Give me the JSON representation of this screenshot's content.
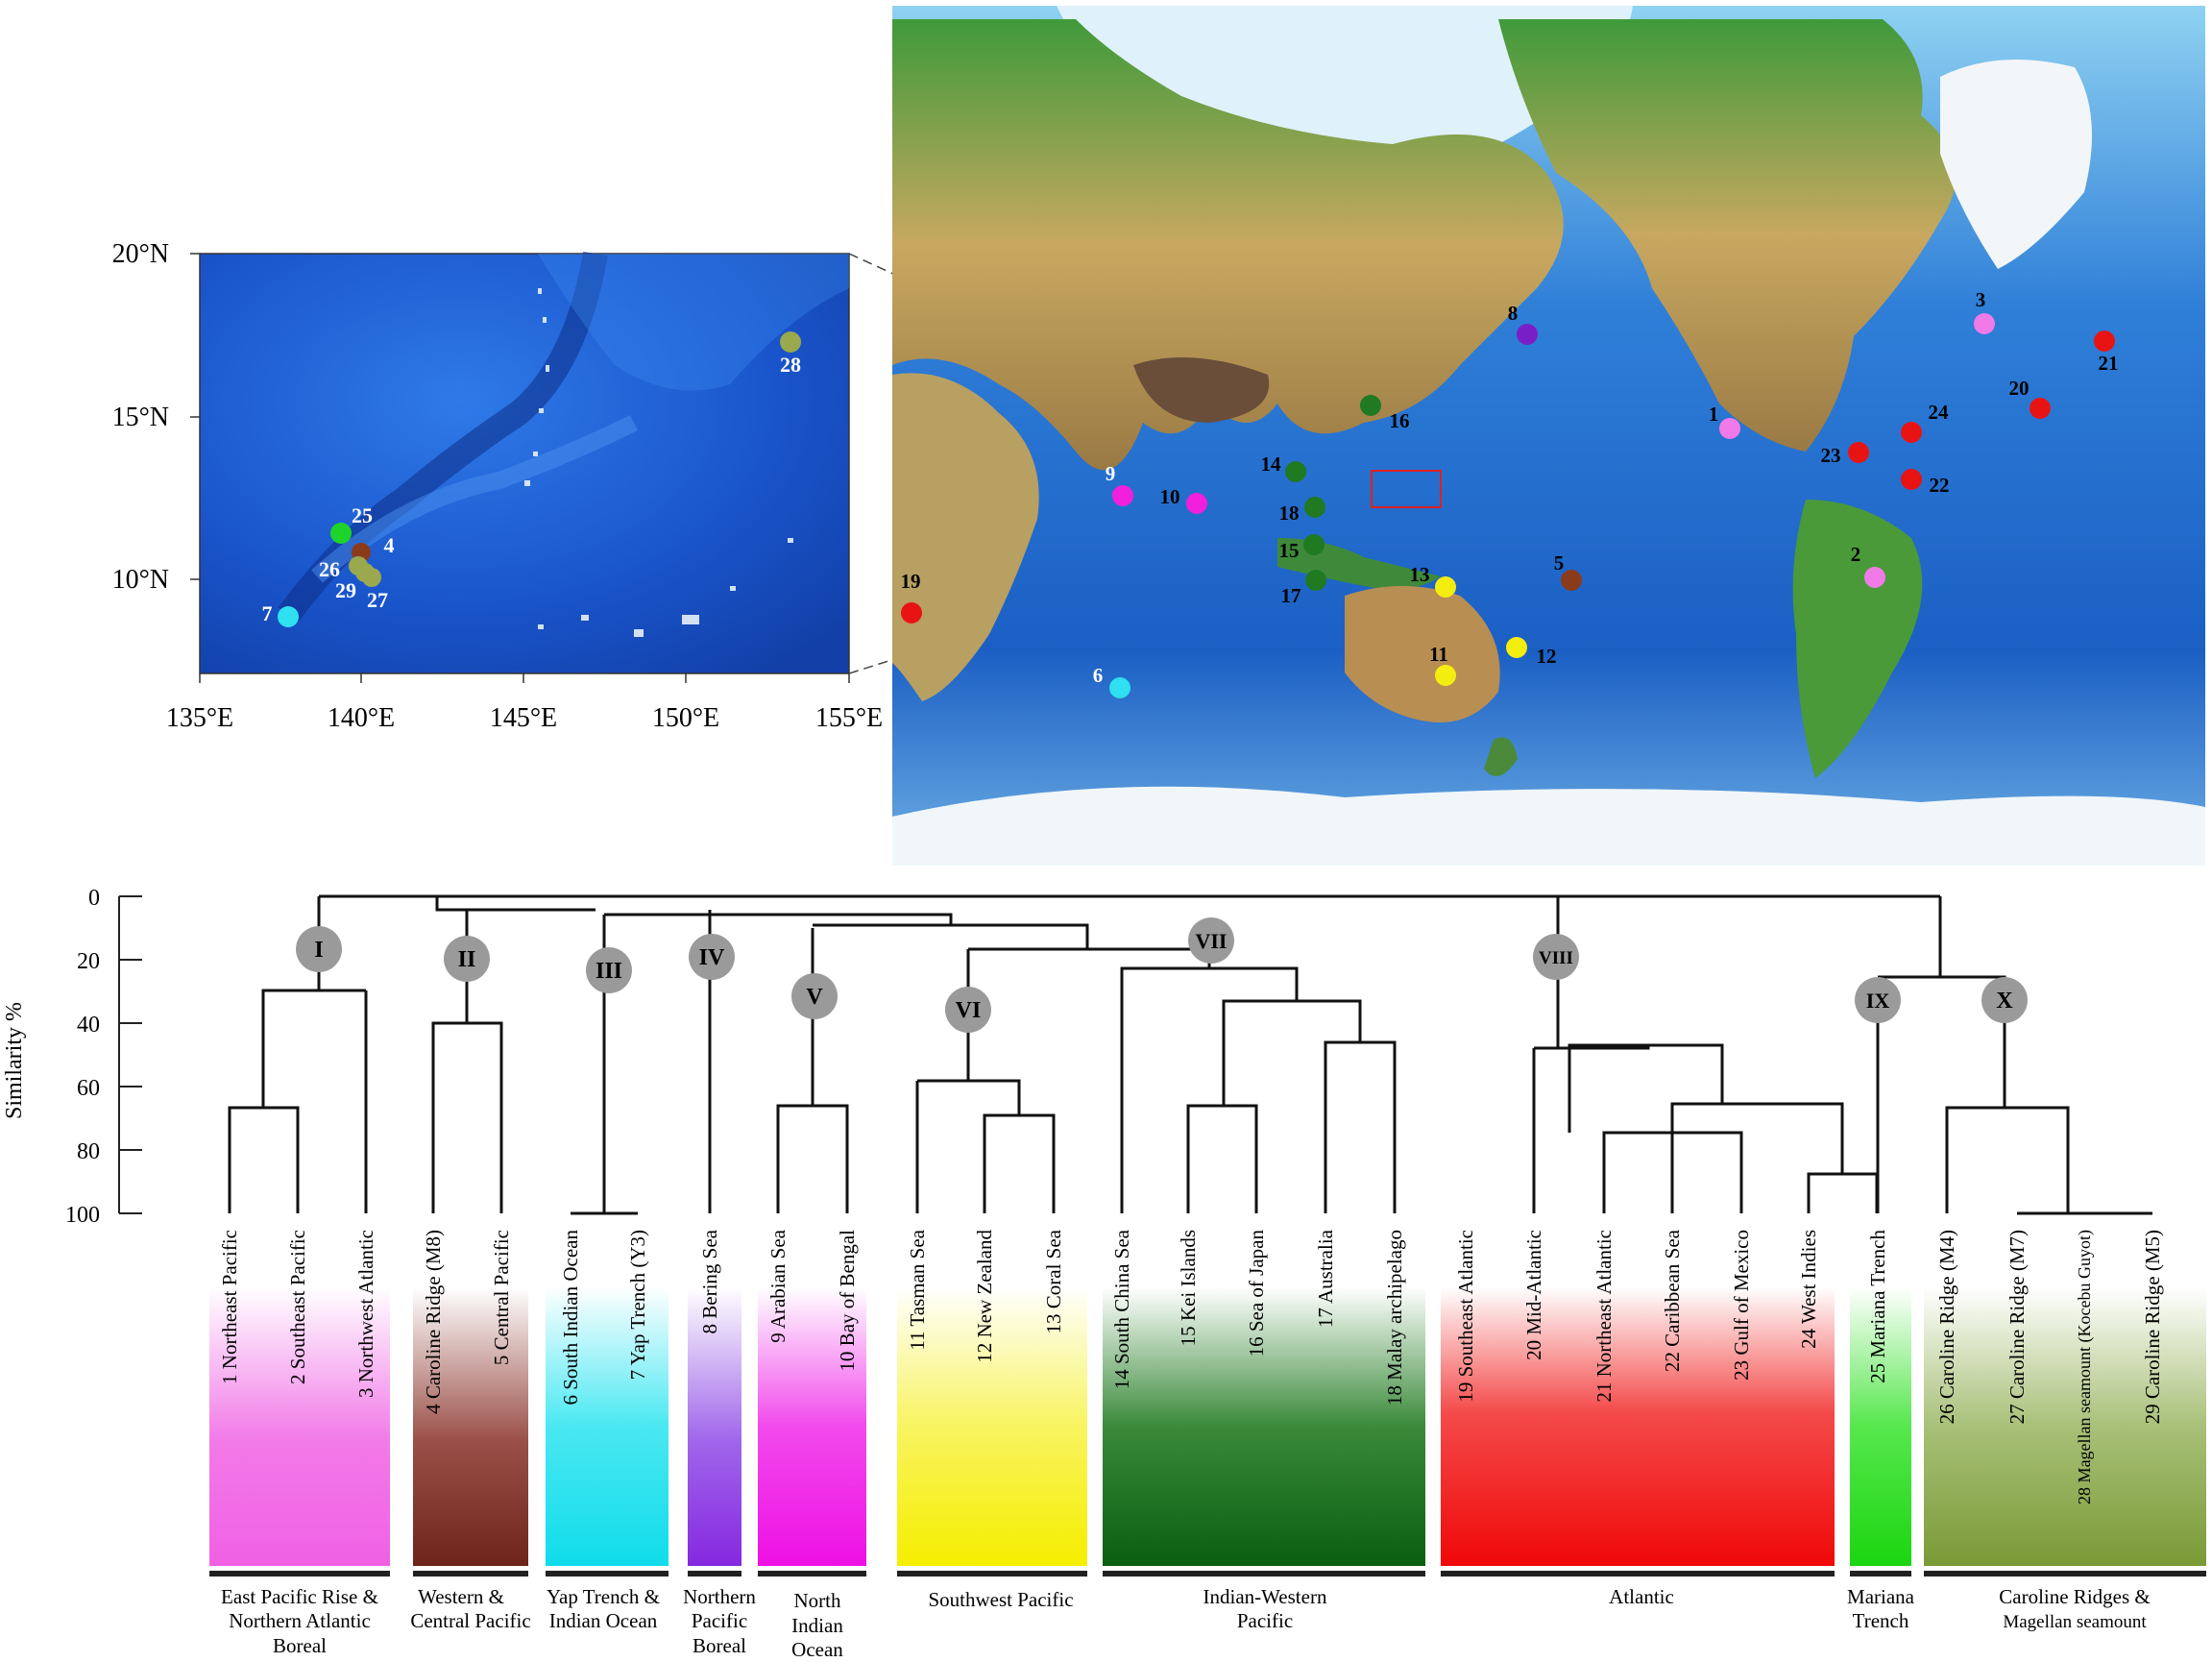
{
  "inset_map": {
    "lat_labels": [
      "20°N",
      "15°N",
      "10°N"
    ],
    "lon_labels": [
      "135°E",
      "140°E",
      "145°E",
      "150°E",
      "155°E"
    ],
    "sites": [
      {
        "label": "28",
        "color": "#9aa84e"
      },
      {
        "label": "25",
        "color": "#1ed42a"
      },
      {
        "label": "4",
        "color": "#8b3a1a"
      },
      {
        "label": "26",
        "color": "#9aa84e"
      },
      {
        "label": "29",
        "color": "#9aa84e"
      },
      {
        "label": "27",
        "color": "#9aa84e"
      },
      {
        "label": "7",
        "color": "#2ee0f0"
      }
    ]
  },
  "world_map": {
    "sites": [
      {
        "label": "1",
        "color": "#f07ae8"
      },
      {
        "label": "2",
        "color": "#f07ae8"
      },
      {
        "label": "3",
        "color": "#f07ae8"
      },
      {
        "label": "5",
        "color": "#8b3a1a"
      },
      {
        "label": "6",
        "color": "#2ee0f0"
      },
      {
        "label": "8",
        "color": "#7a1fc8"
      },
      {
        "label": "9",
        "color": "#f21fdc"
      },
      {
        "label": "10",
        "color": "#f21fdc"
      },
      {
        "label": "11",
        "color": "#f4ee10"
      },
      {
        "label": "12",
        "color": "#f4ee10"
      },
      {
        "label": "13",
        "color": "#f4ee10"
      },
      {
        "label": "14",
        "color": "#1f7a22"
      },
      {
        "label": "15",
        "color": "#1f7a22"
      },
      {
        "label": "16",
        "color": "#1f7a22"
      },
      {
        "label": "17",
        "color": "#1f7a22"
      },
      {
        "label": "18",
        "color": "#1f7a22"
      },
      {
        "label": "19",
        "color": "#e81414"
      },
      {
        "label": "20",
        "color": "#e81414"
      },
      {
        "label": "21",
        "color": "#e81414"
      },
      {
        "label": "22",
        "color": "#e81414"
      },
      {
        "label": "23",
        "color": "#e81414"
      },
      {
        "label": "24",
        "color": "#e81414"
      }
    ]
  },
  "dendrogram": {
    "y_axis_label": "Similarity %",
    "y_ticks": [
      "0",
      "20",
      "40",
      "60",
      "80",
      "100"
    ],
    "clusters": [
      "I",
      "II",
      "III",
      "IV",
      "V",
      "VI",
      "VII",
      "VIII",
      "IX",
      "X"
    ],
    "leaves": [
      "1 Northeast Pacific",
      "2 Southeast Pacific",
      "3 Northwest Atlantic",
      "4 Caroline Ridge (M8)",
      "5 Central Pacific",
      "6 South Indian Ocean",
      "7 Yap Trench (Y3)",
      "8 Bering Sea",
      "9 Arabian Sea",
      "10 Bay of Bengal",
      "11 Tasman Sea",
      "12 New Zealand",
      "13 Coral Sea",
      "14 South China Sea",
      "15 Kei Islands",
      "16 Sea of Japan",
      "17 Australia",
      "18 Malay archipelago",
      "19 Southeast Atlantic",
      "20 Mid-Atlantic",
      "21 Northeast Atlantic",
      "22 Caribbean Sea",
      "23 Gulf of Mexico",
      "24 West Indies",
      "25 Mariana Trench",
      "26 Caroline Ridge (M4)",
      "27 Caroline Ridge (M7)",
      "28 Magellan seamount (Kocebu Guyot)",
      "29 Caroline Ridge (M5)"
    ],
    "groups": [
      {
        "lines": [
          "East Pacific Rise &",
          "Northern Atlantic",
          "Boreal"
        ],
        "color": "#f27ae8"
      },
      {
        "lines": [
          "Western &",
          "Central Pacific"
        ],
        "color": "#7a2e28"
      },
      {
        "lines": [
          "Yap Trench &",
          "Indian Ocean"
        ],
        "color": "#22e2ee"
      },
      {
        "lines": [
          "Northern",
          "Pacific",
          "Boreal"
        ],
        "color": "#8a33e0"
      },
      {
        "lines": [
          "North",
          "Indian",
          "Ocean"
        ],
        "color": "#f01ee8"
      },
      {
        "lines": [
          "Southwest Pacific"
        ],
        "color": "#f6f000"
      },
      {
        "lines": [
          "Indian-Western",
          "Pacific"
        ],
        "color": "#0e6414"
      },
      {
        "lines": [
          "Atlantic"
        ],
        "color": "#f01010"
      },
      {
        "lines": [
          "Mariana",
          "Trench"
        ],
        "color": "#18e018"
      },
      {
        "lines": [
          "Caroline Ridges &",
          "Magellan seamount"
        ],
        "color": "#7f9e3a"
      }
    ]
  }
}
